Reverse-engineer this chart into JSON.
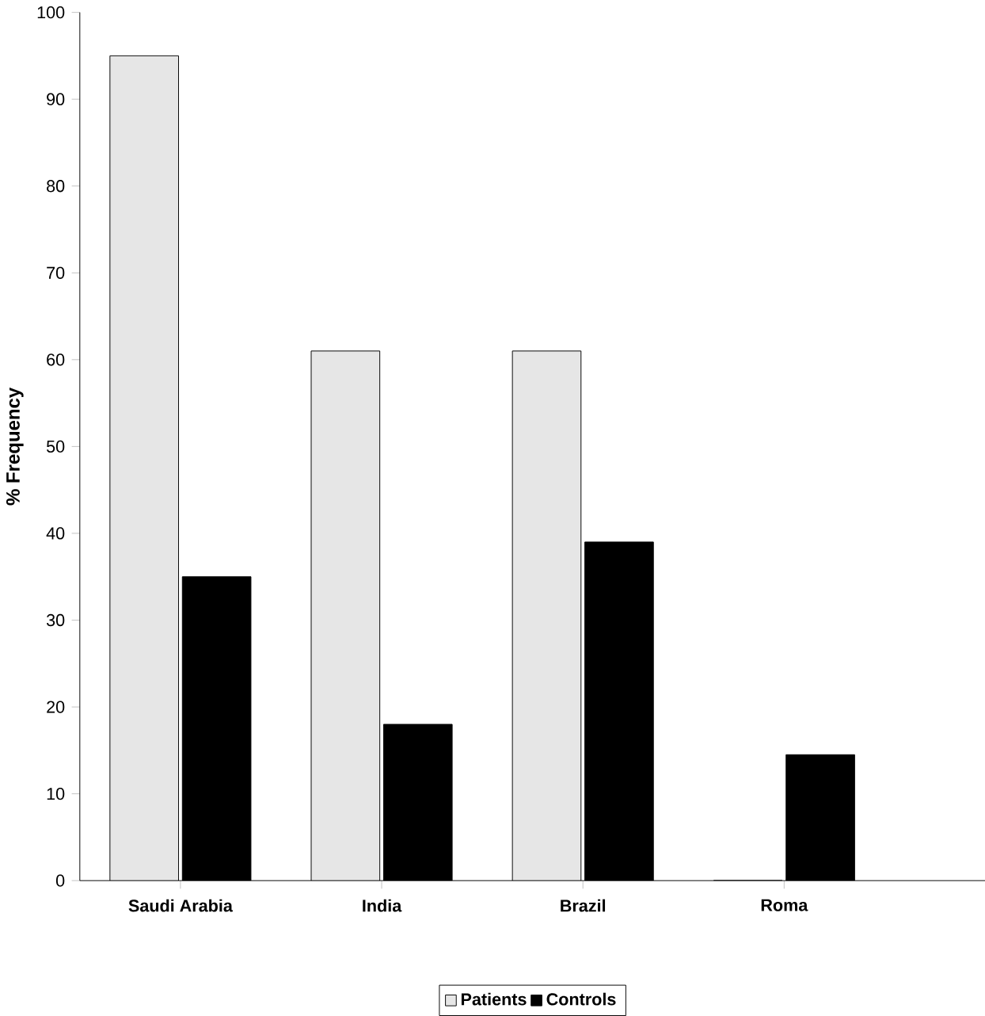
{
  "chart_data": {
    "type": "bar",
    "ylabel": "% Frequency",
    "categories": [
      "Saudi Arabia",
      "India",
      "Brazil",
      "Roma"
    ],
    "series": [
      {
        "name": "Patients",
        "color": "#e6e6e6",
        "values": [
          95,
          61,
          61,
          0
        ]
      },
      {
        "name": "Controls",
        "color": "#000000",
        "values": [
          35,
          18,
          39,
          14.5
        ]
      }
    ],
    "ylim": [
      0,
      100
    ],
    "yticks": [
      0,
      10,
      20,
      30,
      40,
      50,
      60,
      70,
      80,
      90,
      100
    ],
    "legend": "bottom"
  }
}
